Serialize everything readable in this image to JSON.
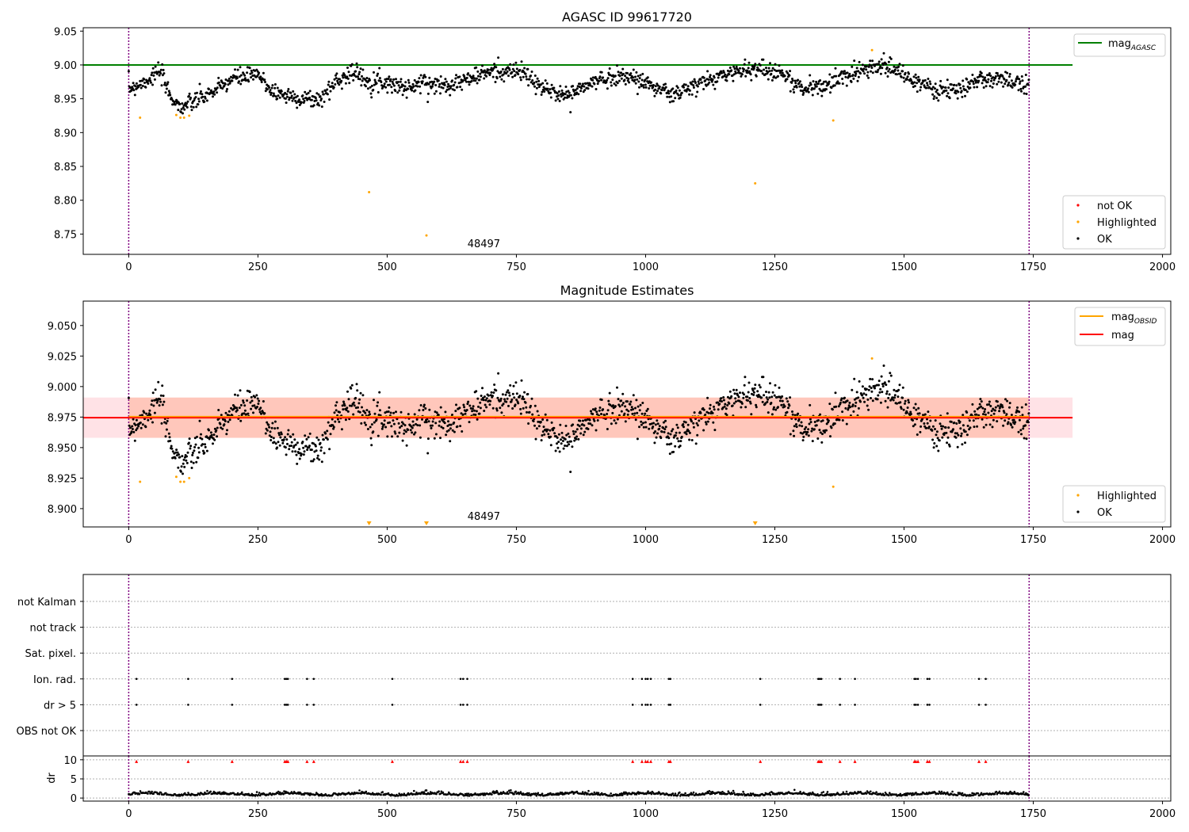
{
  "chart_data": [
    {
      "type": "scatter",
      "title": "AGASC ID 99617720",
      "xlim": [
        -88,
        2016
      ],
      "ylim": [
        8.72,
        9.055
      ],
      "xticks": [
        0,
        250,
        500,
        750,
        1000,
        1250,
        1500,
        1750,
        2000
      ],
      "yticks": [
        8.75,
        8.8,
        8.85,
        8.9,
        8.95,
        9.0,
        9.05
      ],
      "ytick_labels": [
        "8.75",
        "8.80",
        "8.85",
        "8.90",
        "8.95",
        "9.00",
        "9.05"
      ],
      "obsid_label": "48497",
      "obsid_label_x": 870,
      "vlines": [
        0,
        1742
      ],
      "hline": {
        "y": 9.0,
        "x": [
          -88,
          1826
        ],
        "color": "#008000",
        "legend": "mag",
        "legend_sub": "AGASC"
      },
      "legend_upper": "top-right",
      "legend_lower": "bottom-right",
      "series": [
        {
          "name": "not OK",
          "color": "#ff0000",
          "values": []
        },
        {
          "name": "Highlighted",
          "color": "#ffa500",
          "points": [
            [
              22,
              8.922
            ],
            [
              92,
              8.926
            ],
            [
              100,
              8.922
            ],
            [
              107,
              8.922
            ],
            [
              117,
              8.925
            ],
            [
              465,
              8.812
            ],
            [
              576,
              8.748
            ],
            [
              1212,
              8.825
            ],
            [
              1363,
              8.918
            ],
            [
              1438,
              9.022
            ]
          ]
        },
        {
          "name": "OK",
          "color": "#000000",
          "profile": {
            "x_range": [
              0,
              1742
            ],
            "step": 1.1,
            "knots_x": [
              0,
              30,
              60,
              80,
              100,
              125,
              150,
              175,
              200,
              250,
              280,
              320,
              370,
              400,
              430,
              470,
              500,
              540,
              570,
              600,
              640,
              700,
              760,
              800,
              850,
              900,
              950,
              1000,
              1050,
              1100,
              1150,
              1200,
              1260,
              1300,
              1350,
              1420,
              1460,
              1500,
              1550,
              1600,
              1650,
              1700,
              1742
            ],
            "knots_y": [
              8.965,
              8.975,
              8.99,
              8.955,
              8.937,
              8.945,
              8.955,
              8.965,
              8.98,
              8.985,
              8.96,
              8.952,
              8.948,
              8.975,
              8.99,
              8.975,
              8.975,
              8.965,
              8.975,
              8.97,
              8.975,
              8.99,
              8.99,
              8.965,
              8.955,
              8.975,
              8.985,
              8.975,
              8.955,
              8.97,
              8.985,
              8.995,
              8.99,
              8.965,
              8.97,
              8.995,
              9.0,
              8.985,
              8.965,
              8.96,
              8.98,
              8.975,
              8.975
            ],
            "jitter": 0.012
          }
        }
      ]
    },
    {
      "type": "scatter",
      "title": "Magnitude Estimates",
      "xlim": [
        -88,
        2016
      ],
      "ylim": [
        8.885,
        9.07
      ],
      "xticks": [
        0,
        250,
        500,
        750,
        1000,
        1250,
        1500,
        1750,
        2000
      ],
      "yticks": [
        8.9,
        8.925,
        8.95,
        8.975,
        9.0,
        9.025,
        9.05
      ],
      "ytick_labels": [
        "8.900",
        "8.925",
        "8.950",
        "8.975",
        "9.000",
        "9.025",
        "9.050"
      ],
      "obsid_label": "48497",
      "obsid_label_x": 870,
      "vlines": [
        0,
        1742
      ],
      "band": {
        "y": [
          8.958,
          8.991
        ],
        "x": [
          -88,
          1826
        ],
        "color": "#ffb6c1"
      },
      "band_obsid": {
        "y": [
          8.958,
          8.991
        ],
        "x": [
          0,
          1742
        ],
        "color": "#ffa07a"
      },
      "lines": [
        {
          "legend": "mag",
          "legend_sub": "OBSID",
          "y": 8.9745,
          "x": [
            0,
            1742
          ],
          "color": "#ffa500"
        },
        {
          "legend": "mag",
          "legend_sub": "",
          "y": 8.9745,
          "x": [
            -88,
            1826
          ],
          "color": "#ff0000"
        }
      ],
      "offscale_markers": [
        465,
        576,
        1212
      ],
      "legend_upper": "top-right",
      "legend_lower": "bottom-right",
      "series": [
        {
          "name": "Highlighted",
          "color": "#ffa500",
          "points": [
            [
              22,
              8.922
            ],
            [
              92,
              8.926
            ],
            [
              100,
              8.922
            ],
            [
              107,
              8.922
            ],
            [
              117,
              8.925
            ],
            [
              1363,
              8.918
            ],
            [
              1438,
              9.023
            ]
          ]
        },
        {
          "name": "OK",
          "color": "#000000",
          "profile_ref": 0
        }
      ]
    },
    {
      "type": "scatter",
      "title": "",
      "xlim": [
        -88,
        2016
      ],
      "categories": [
        "not Kalman",
        "not track",
        "Sat. pixel.",
        "Ion. rad.",
        "dr > 5",
        "OBS not OK"
      ],
      "vlines": [
        0,
        1742
      ],
      "flag_x": [
        15,
        115,
        200,
        302,
        305,
        308,
        345,
        358,
        510,
        642,
        647,
        655,
        975,
        993,
        1000,
        1004,
        1010,
        1045,
        1048,
        1222,
        1334,
        1337,
        1340,
        1376,
        1405,
        1520,
        1523,
        1527,
        1545,
        1549,
        1645,
        1658
      ],
      "flag_rows": [
        "Ion. rad.",
        "dr > 5"
      ],
      "flag_color": "#000000"
    },
    {
      "type": "scatter",
      "title": "",
      "xlim": [
        -88,
        2016
      ],
      "ylim": [
        -0.8,
        11
      ],
      "ylabel": "dr",
      "xticks": [
        0,
        250,
        500,
        750,
        1000,
        1250,
        1500,
        1750,
        2000
      ],
      "yticks": [
        0,
        5,
        10
      ],
      "ytick_labels": [
        "0",
        "5",
        "10"
      ],
      "vlines": [
        0,
        1742
      ],
      "limit_value": 10,
      "limit_color": "#ff0000",
      "base_level": 0.8,
      "base_color": "#000000"
    }
  ]
}
